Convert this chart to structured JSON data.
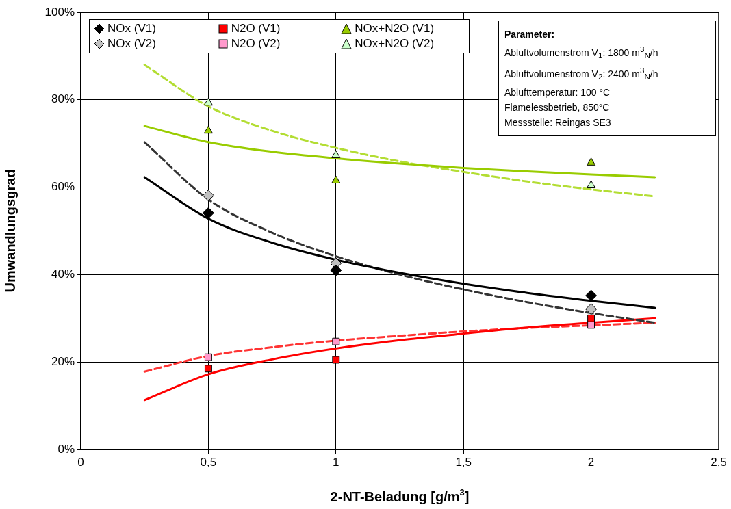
{
  "chart_data": {
    "type": "scatter",
    "xlabel": "2-NT-Beladung [g/m$^{3}$]",
    "ylabel": "Umwandlungsgrad",
    "xlim": [
      0,
      2.5
    ],
    "xticks": [
      0,
      {
        "value": 0.5,
        "label": "0,5"
      },
      1,
      {
        "value": 1.5,
        "label": "1,5"
      },
      2,
      {
        "value": 2.5,
        "label": "2,5"
      }
    ],
    "ylim": [
      0,
      100
    ],
    "yticks": [
      {
        "value": 0,
        "label": "0%"
      },
      {
        "value": 20,
        "label": "20%"
      },
      {
        "value": 40,
        "label": "40%"
      },
      {
        "value": 60,
        "label": "60%"
      },
      {
        "value": 80,
        "label": "80%"
      },
      {
        "value": 100,
        "label": "100%"
      }
    ],
    "grid": true,
    "legend": "top left",
    "annotations": [
      "Parameter:",
      "Abluftvolumenstrom V$_{1}$: 1800 m$^{3}$$_{N}$/h",
      "Abluftvolumenstrom V$_{2}$: 2400 m$^{3}$$_{N}$/h",
      "Ablufttemperatur: 100 °C",
      "Flamelessbetrieb, 850°C",
      "Messstelle: Reingas SE3"
    ],
    "series": [
      {
        "type": "line",
        "marker": "none",
        "line_style": "solid",
        "color": "#000000",
        "x": [
          0.25,
          0.5,
          0.75,
          1,
          1.25,
          1.5,
          1.75,
          2,
          2.25
        ],
        "values": [
          62.3,
          52.8,
          47.3,
          43.4,
          40.4,
          37.9,
          35.8,
          34.0,
          32.4
        ]
      },
      {
        "type": "line",
        "marker": "none",
        "line_style": "dashed",
        "color": "#333333",
        "x": [
          0.25,
          0.5,
          0.75,
          1,
          1.25,
          1.5,
          1.75,
          2,
          2.25
        ],
        "values": [
          70.3,
          57.2,
          49.6,
          44.2,
          40.0,
          36.6,
          33.7,
          31.2,
          29.0
        ]
      },
      {
        "type": "line",
        "marker": "none",
        "line_style": "solid",
        "color": "#ff0000",
        "x": [
          0.25,
          0.5,
          0.75,
          1,
          1.25,
          1.5,
          1.75,
          2,
          2.25
        ],
        "values": [
          11.3,
          17.2,
          20.6,
          23.1,
          25.0,
          26.5,
          27.9,
          29.0,
          30.0
        ]
      },
      {
        "type": "line",
        "marker": "none",
        "line_style": "dashed",
        "color": "#ff3333",
        "x": [
          0.25,
          0.5,
          0.75,
          1,
          1.25,
          1.5,
          1.75,
          2,
          2.25
        ],
        "values": [
          17.8,
          21.4,
          23.4,
          24.9,
          26.0,
          27.0,
          27.8,
          28.4,
          29.0
        ]
      },
      {
        "type": "line",
        "marker": "none",
        "line_style": "solid",
        "color": "#99cc00",
        "x": [
          0.25,
          0.5,
          0.75,
          1,
          1.25,
          1.5,
          1.75,
          2,
          2.25
        ],
        "values": [
          74.0,
          70.3,
          68.1,
          66.6,
          65.4,
          64.4,
          63.6,
          62.9,
          62.3
        ]
      },
      {
        "type": "line",
        "marker": "none",
        "line_style": "dashed",
        "color": "#b3dd33",
        "x": [
          0.25,
          0.5,
          0.75,
          1,
          1.25,
          1.5,
          1.75,
          2,
          2.25
        ],
        "values": [
          88.0,
          78.5,
          72.9,
          69.0,
          65.9,
          63.5,
          61.3,
          59.5,
          57.9
        ]
      },
      {
        "name": "NOx (V1)",
        "marker": "diamond",
        "color": "#000000",
        "x": [
          0.5,
          1,
          2
        ],
        "values": [
          54.1,
          41.0,
          35.2
        ]
      },
      {
        "name": "N2O (V1)",
        "marker": "square",
        "color": "#ff0000",
        "x": [
          0.5,
          1,
          2
        ],
        "values": [
          18.5,
          20.5,
          30.0
        ]
      },
      {
        "name": "NOx+N2O (V1)",
        "marker": "triangle",
        "color": "#99cc00",
        "x": [
          0.5,
          1,
          2
        ],
        "values": [
          72.9,
          61.5,
          65.6
        ]
      },
      {
        "name": "NOx (V2)",
        "marker": "diamond",
        "color": "#c0c0c0",
        "x": [
          0.5,
          1,
          2
        ],
        "values": [
          58.1,
          42.6,
          32.1
        ]
      },
      {
        "name": "N2O (V2)",
        "marker": "square",
        "color": "#ff99cc",
        "x": [
          0.5,
          1,
          2
        ],
        "values": [
          21.1,
          24.7,
          28.5
        ]
      },
      {
        "name": "NOx+N2O (V2)",
        "marker": "triangle",
        "color": "#ccffcc",
        "x": [
          0.5,
          1,
          2
        ],
        "values": [
          79.3,
          67.3,
          60.4
        ]
      }
    ]
  }
}
